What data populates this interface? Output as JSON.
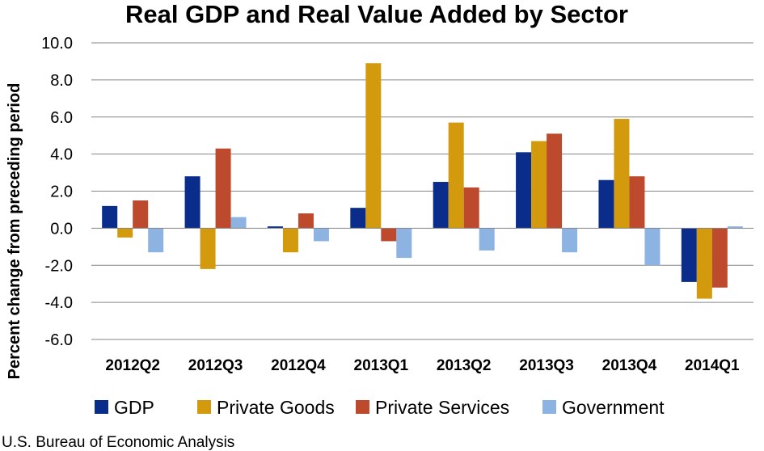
{
  "chart_data": {
    "type": "bar",
    "title": "Real GDP and Real Value Added by Sector",
    "xlabel": "",
    "ylabel": "Percent change from preceding period",
    "ylim": [
      -6.0,
      10.0
    ],
    "yticks": [
      "10.0",
      "8.0",
      "6.0",
      "4.0",
      "2.0",
      "0.0",
      "-2.0",
      "-4.0",
      "-6.0"
    ],
    "categories": [
      "2012Q2",
      "2012Q3",
      "2012Q4",
      "2013Q1",
      "2013Q2",
      "2013Q3",
      "2013Q4",
      "2014Q1"
    ],
    "series": [
      {
        "name": "GDP",
        "color": "#0a2d8c",
        "values": [
          1.2,
          2.8,
          0.1,
          1.1,
          2.5,
          4.1,
          2.6,
          -2.9
        ]
      },
      {
        "name": "Private Goods",
        "color": "#d29a0c",
        "values": [
          -0.5,
          -2.2,
          -1.3,
          8.9,
          5.7,
          4.7,
          5.9,
          -3.8
        ]
      },
      {
        "name": "Private Services",
        "color": "#bd4a2c",
        "values": [
          1.5,
          4.3,
          0.8,
          -0.7,
          2.2,
          5.1,
          2.8,
          -3.2
        ]
      },
      {
        "name": "Government",
        "color": "#8db3e2",
        "values": [
          -1.3,
          0.6,
          -0.7,
          -1.6,
          -1.2,
          -1.3,
          -2.0,
          0.1
        ]
      }
    ],
    "grid": true,
    "legend": "bottom",
    "source": "U.S. Bureau of Economic Analysis"
  }
}
